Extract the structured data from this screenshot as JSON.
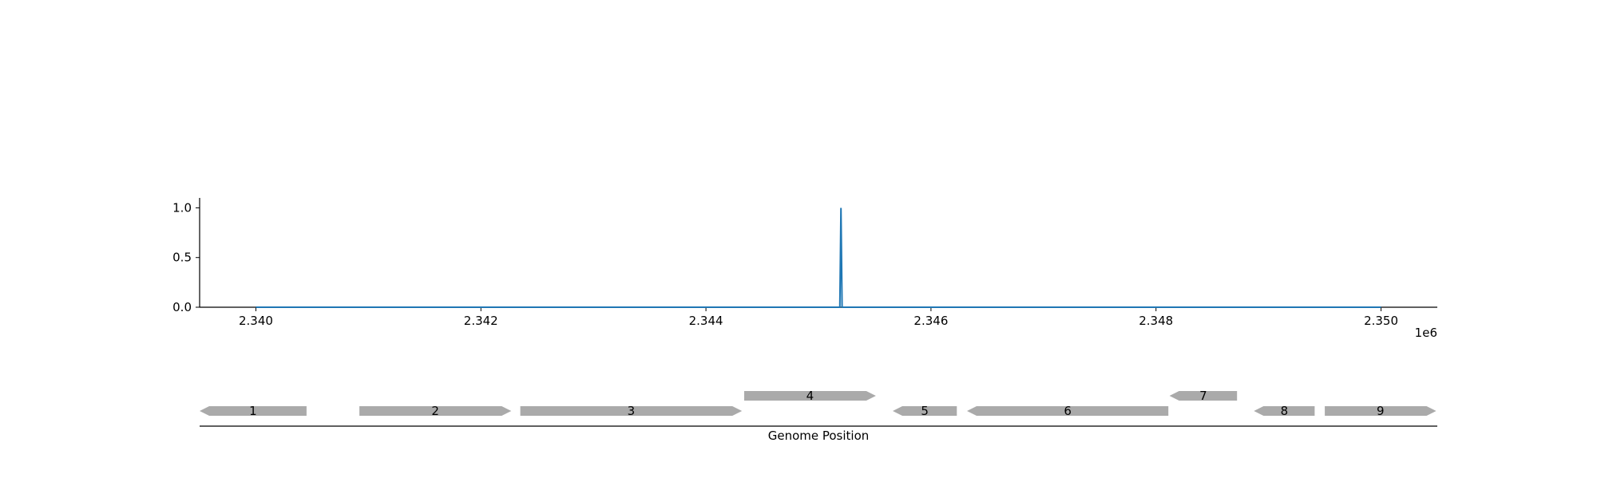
{
  "chart_data": [
    {
      "type": "line",
      "title": "",
      "xlabel": "",
      "ylabel": "",
      "x_offset_label": "1e6",
      "xlim": [
        2.3395,
        2.3505
      ],
      "ylim": [
        0.0,
        1.1
      ],
      "x_ticks": [
        2.34,
        2.342,
        2.344,
        2.346,
        2.348,
        2.35
      ],
      "x_tick_labels": [
        "2.340",
        "2.342",
        "2.344",
        "2.346",
        "2.348",
        "2.350"
      ],
      "y_ticks": [
        0.0,
        0.5,
        1.0
      ],
      "y_tick_labels": [
        "0.0",
        "0.5",
        "1.0"
      ],
      "grid": false,
      "series": [
        {
          "color": "#1f77b4",
          "x": [
            2.34,
            2.34519,
            2.3452,
            2.34521,
            2.35
          ],
          "y": [
            0.0,
            0.0,
            1.0,
            0.0,
            0.0
          ]
        }
      ]
    },
    {
      "type": "gene-track",
      "xlabel": "Genome Position",
      "xlim": [
        2.3395,
        2.3505
      ],
      "gene_color": "#aaaaaa",
      "genes": [
        {
          "label": "1",
          "start": 2.3395,
          "end": 2.34045,
          "strand": "-",
          "row": 0
        },
        {
          "label": "2",
          "start": 2.34092,
          "end": 2.34227,
          "strand": "+",
          "row": 0
        },
        {
          "label": "3",
          "start": 2.34235,
          "end": 2.34432,
          "strand": "+",
          "row": 0
        },
        {
          "label": "4",
          "start": 2.34434,
          "end": 2.34551,
          "strand": "+",
          "row": 1
        },
        {
          "label": "5",
          "start": 2.34566,
          "end": 2.34623,
          "strand": "-",
          "row": 0
        },
        {
          "label": "6",
          "start": 2.34632,
          "end": 2.34811,
          "strand": "-",
          "row": 0
        },
        {
          "label": "7",
          "start": 2.34812,
          "end": 2.34872,
          "strand": "-",
          "row": 1
        },
        {
          "label": "8",
          "start": 2.34887,
          "end": 2.34941,
          "strand": "-",
          "row": 0
        },
        {
          "label": "9",
          "start": 2.3495,
          "end": 2.35049,
          "strand": "+",
          "row": 0
        }
      ]
    }
  ]
}
